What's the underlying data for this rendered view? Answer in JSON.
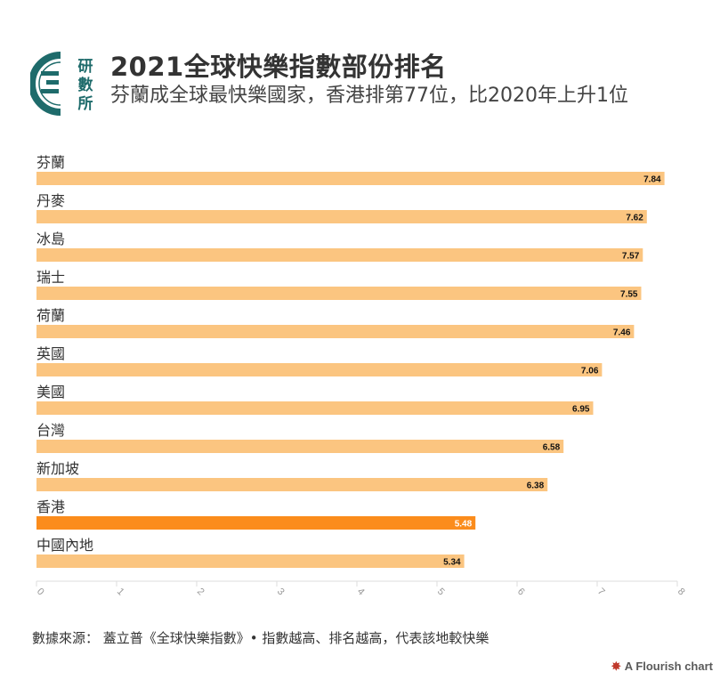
{
  "header": {
    "title": "2021全球快樂指數部份排名",
    "subtitle": "芬蘭成全球最快樂國家，香港排第77位，比2020年上升1位",
    "logo_text": "研數所"
  },
  "footer": {
    "source": "數據來源：  蓋立普《全球快樂指數》• 指數越高、排名越高，代表該地較快樂",
    "credit": "A Flourish chart"
  },
  "colors": {
    "bar": "#fbc580",
    "highlight": "#fb8c1c",
    "text": "#333333",
    "logo": "#1e6b6b"
  },
  "chart_data": {
    "type": "bar",
    "orientation": "horizontal",
    "categories": [
      "芬蘭",
      "丹麥",
      "冰島",
      "瑞士",
      "荷蘭",
      "英國",
      "美國",
      "台灣",
      "新加坡",
      "香港",
      "中國內地"
    ],
    "values": [
      7.84,
      7.62,
      7.57,
      7.55,
      7.46,
      7.06,
      6.95,
      6.58,
      6.38,
      5.48,
      5.34
    ],
    "value_labels": [
      "7.84",
      "7.62",
      "7.57",
      "7.55",
      "7.46",
      "7.06",
      "6.95",
      "6.58",
      "6.38",
      "5.48",
      "5.34"
    ],
    "highlight": "香港",
    "xlim": [
      0,
      8
    ],
    "xticks": [
      "0",
      "1",
      "2",
      "3",
      "4",
      "5",
      "6",
      "7",
      "8"
    ],
    "grid": false
  }
}
